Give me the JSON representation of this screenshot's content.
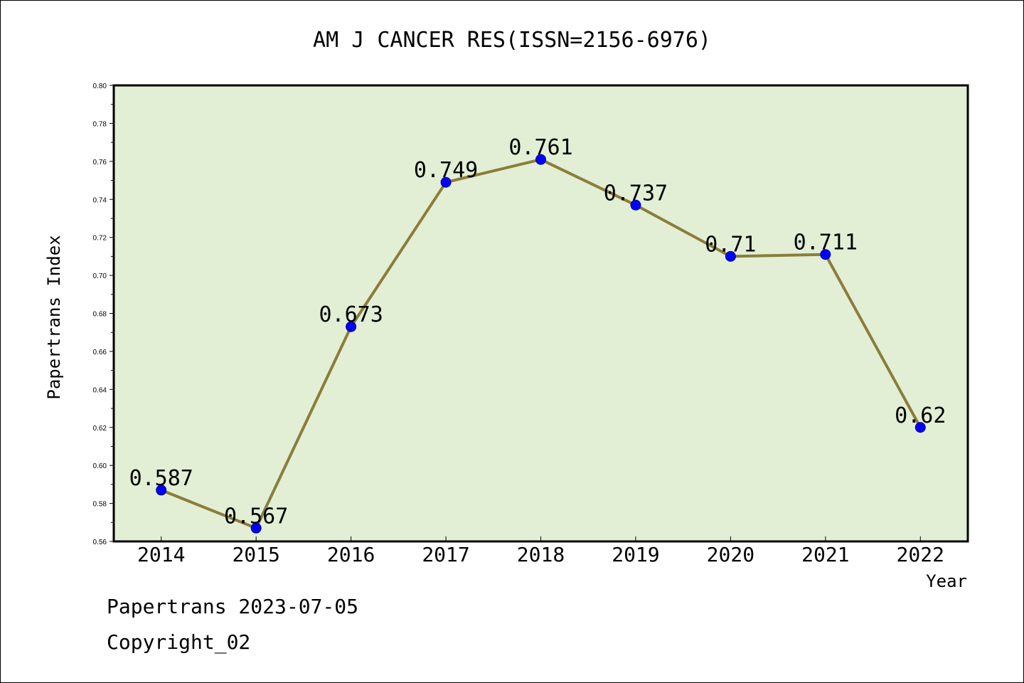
{
  "chart_data": {
    "type": "line",
    "title": "AM J CANCER RES(ISSN=2156-6976)",
    "xlabel": "Year",
    "ylabel": "Papertrans Index",
    "categories": [
      "2014",
      "2015",
      "2016",
      "2017",
      "2018",
      "2019",
      "2020",
      "2021",
      "2022"
    ],
    "series": [
      {
        "values": [
          0.587,
          0.567,
          0.673,
          0.749,
          0.761,
          0.737,
          0.71,
          0.711,
          0.62
        ],
        "point_labels": [
          "0.587",
          "0.567",
          "0.673",
          "0.749",
          "0.761",
          "0.737",
          "0.71",
          "0.711",
          "0.62"
        ]
      }
    ],
    "ylim": [
      0.56,
      0.8
    ],
    "yticks": [
      "0.56",
      "0.58",
      "0.60",
      "0.62",
      "0.64",
      "0.66",
      "0.68",
      "0.70",
      "0.72",
      "0.74",
      "0.76",
      "0.78",
      "0.80"
    ],
    "grid": false,
    "colors": {
      "plot_background": "#e2efd5",
      "line": "#8b7d3a",
      "marker": "#0000ff"
    }
  },
  "footer": {
    "line1": "Papertrans 2023-07-05",
    "line2": "Copyright_02"
  }
}
